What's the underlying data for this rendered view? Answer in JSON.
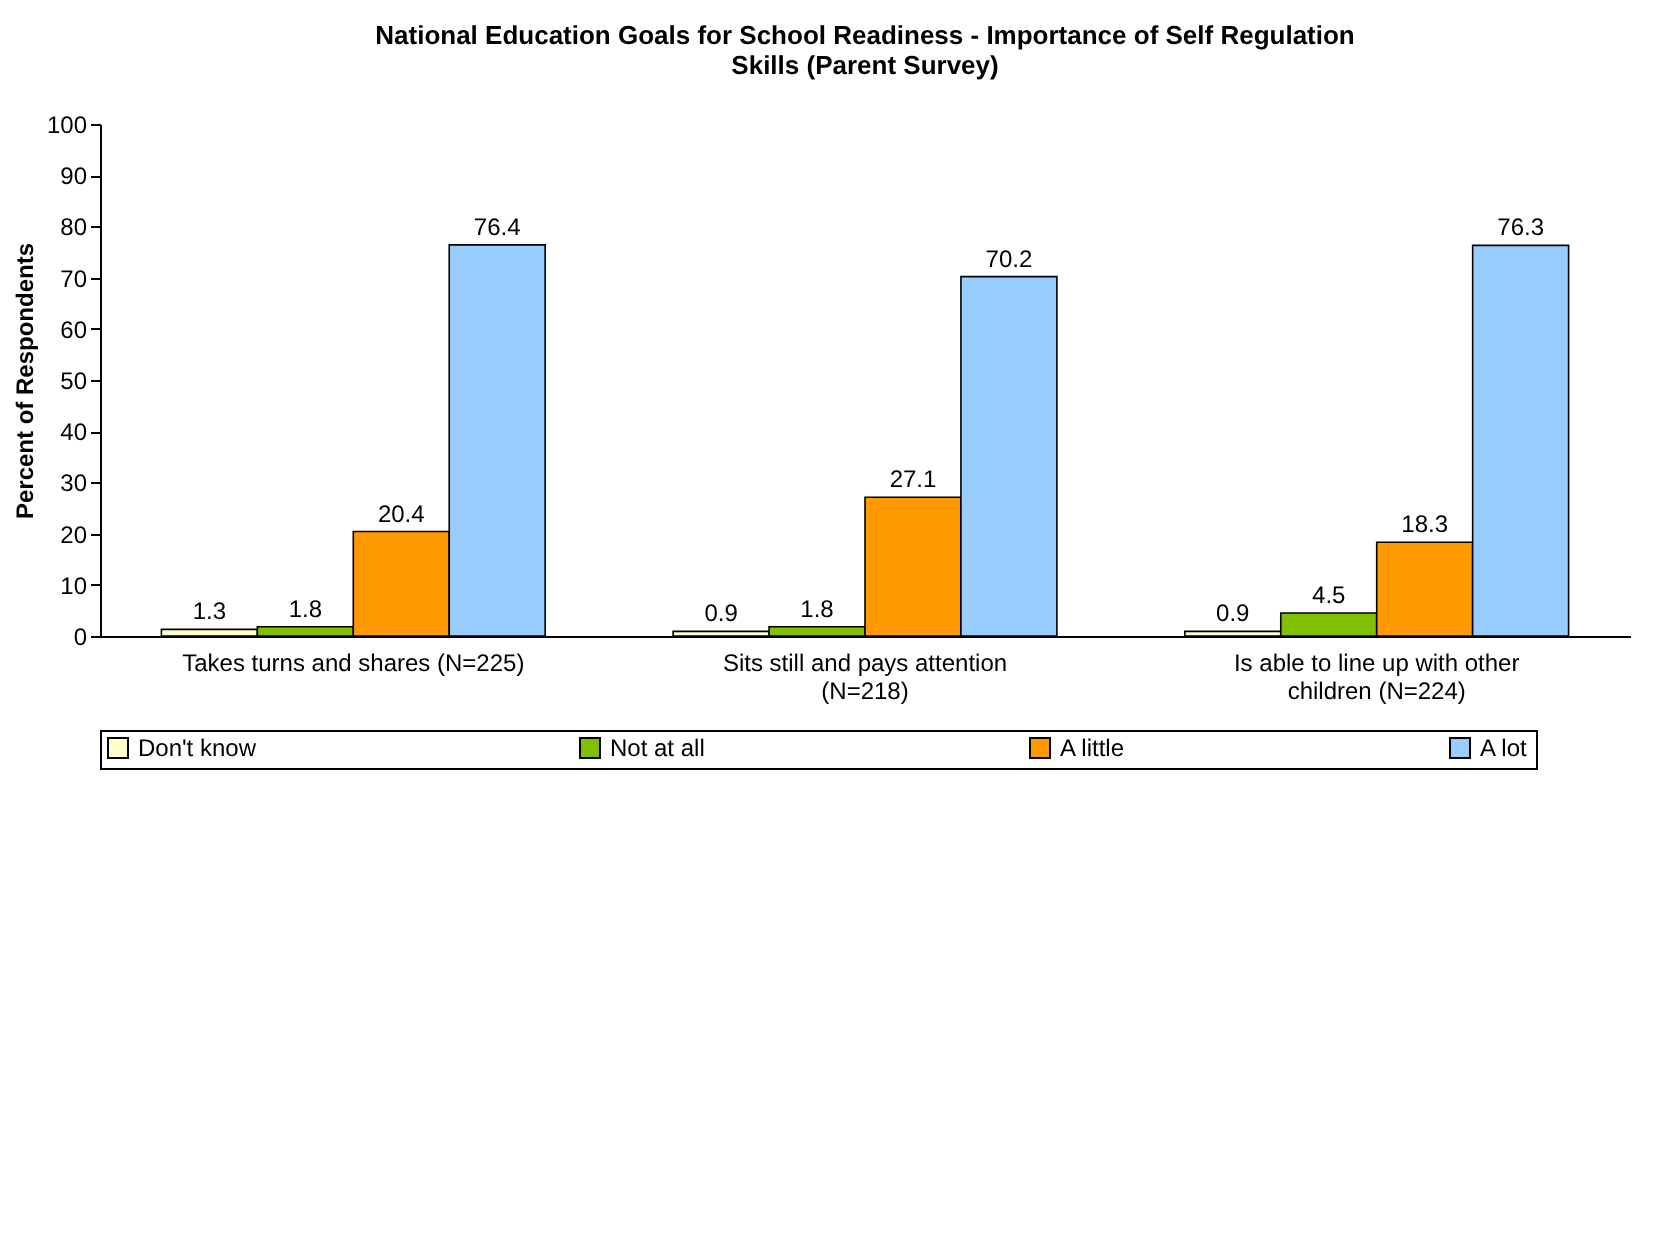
{
  "chart_data": {
    "type": "bar",
    "title": "National Education Goals for School Readiness - Importance of Self Regulation Skills (Parent Survey)",
    "ylabel": "Percent of Respondents",
    "categories": [
      "Takes turns and shares (N=225)",
      "Sits still and pays attention (N=218)",
      "Is able to line up with other children (N=224)"
    ],
    "series": [
      {
        "name": "Don't know",
        "color": "#ffffcc",
        "values": [
          1.3,
          0.9,
          0.9
        ]
      },
      {
        "name": "Not at all",
        "color": "#80c000",
        "values": [
          1.8,
          1.8,
          4.5
        ]
      },
      {
        "name": "A little",
        "color": "#ff9900",
        "values": [
          20.4,
          27.1,
          18.3
        ]
      },
      {
        "name": "A lot",
        "color": "#99ccff",
        "values": [
          76.4,
          70.2,
          76.3
        ]
      }
    ],
    "ylim": [
      0,
      100
    ],
    "yticks": [
      0,
      10,
      20,
      30,
      40,
      50,
      60,
      70,
      80,
      90,
      100
    ],
    "data_labels": true,
    "legend": "bottom",
    "grid": false
  }
}
